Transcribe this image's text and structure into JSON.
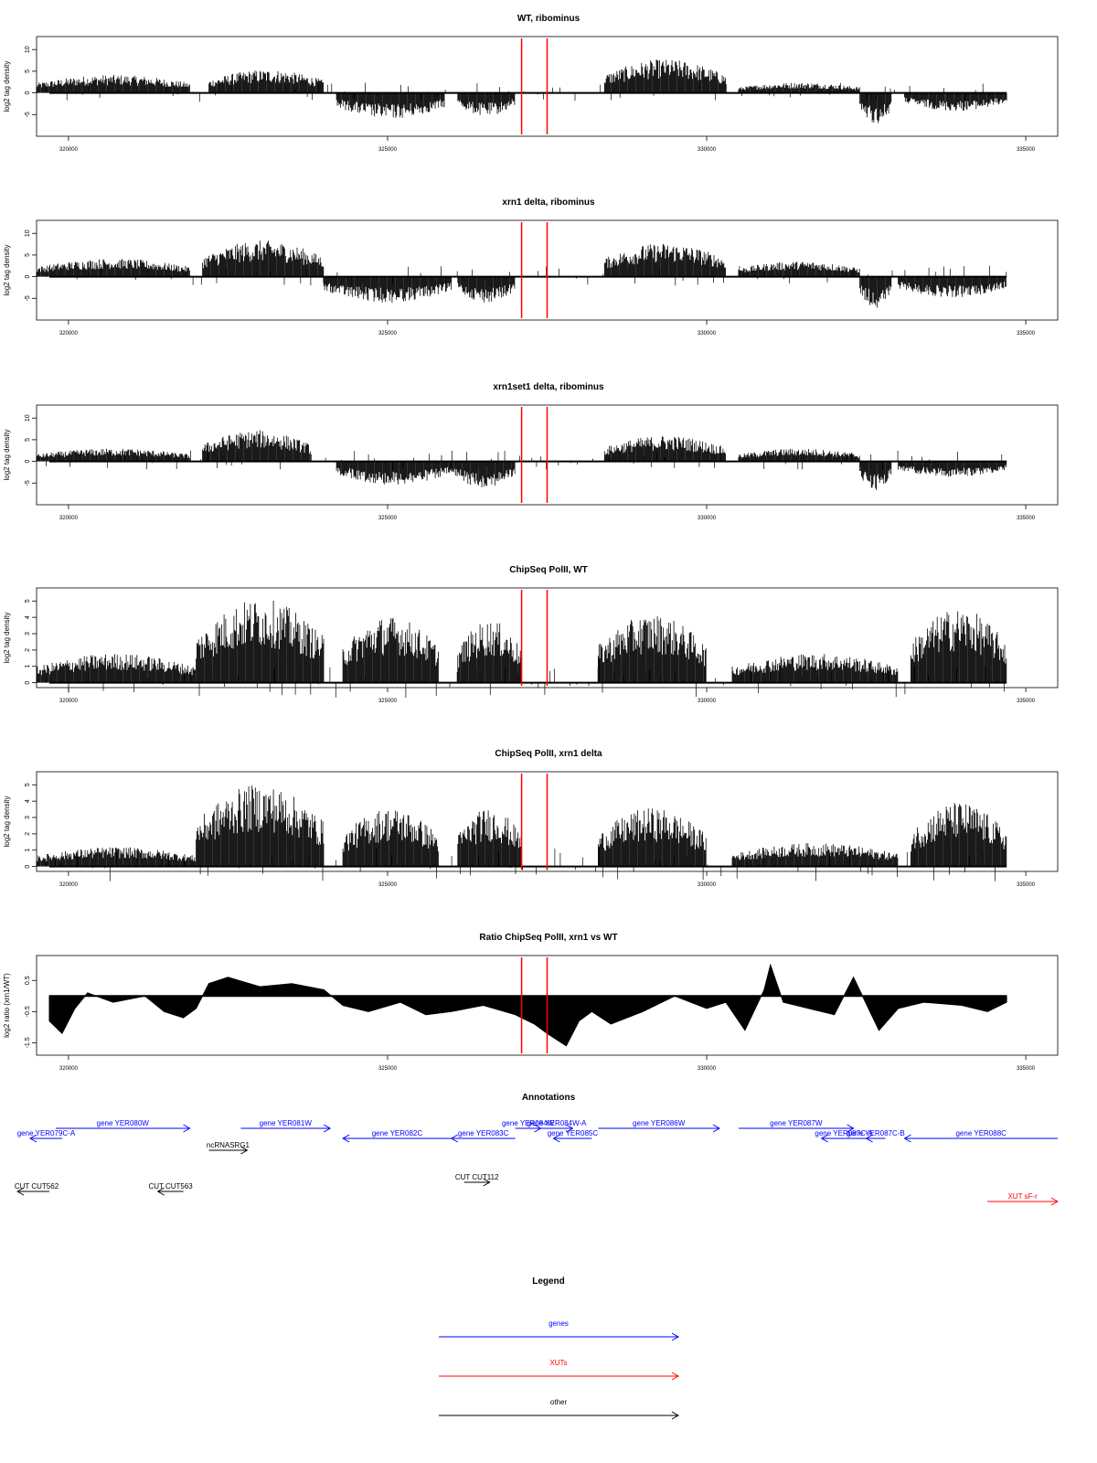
{
  "figure": {
    "x_range": [
      319500,
      335500
    ],
    "x_ticks": [
      320000,
      325000,
      330000,
      335000
    ],
    "x_tick_labels": [
      "320000",
      "325000",
      "330000",
      "335000"
    ],
    "red_marker_positions": [
      327100,
      327500
    ],
    "colors": {
      "genes": "#0000ff",
      "xuts": "#ff0000",
      "other": "#000000",
      "marker": "#ff0000",
      "signal": "#000000"
    }
  },
  "chart_data": [
    {
      "id": "wt-ribominus",
      "type": "bar",
      "title": "WT, ribominus",
      "xlabel": "",
      "ylabel": "log2 tag density",
      "ylim": [
        -10,
        13
      ],
      "y_ticks": [
        -5,
        0,
        5,
        10
      ],
      "y_tick_labels": [
        "-5",
        "0",
        "5",
        "10"
      ],
      "baseline": 0,
      "segments": [
        {
          "start": 319500,
          "end": 321900,
          "value": 3.5
        },
        {
          "start": 322200,
          "end": 324000,
          "value": 4.5
        },
        {
          "start": 324200,
          "end": 325900,
          "value": -5
        },
        {
          "start": 326100,
          "end": 327000,
          "value": -4.5
        },
        {
          "start": 328400,
          "end": 330300,
          "value": 6.5
        },
        {
          "start": 330500,
          "end": 332400,
          "value": 2
        },
        {
          "start": 332400,
          "end": 332900,
          "value": -6
        },
        {
          "start": 333100,
          "end": 334700,
          "value": -3.5
        }
      ]
    },
    {
      "id": "xrn1-ribominus",
      "type": "bar",
      "title": "xrn1 delta, ribominus",
      "xlabel": "",
      "ylabel": "log2 tag density",
      "ylim": [
        -10,
        13
      ],
      "y_ticks": [
        -5,
        0,
        5,
        10
      ],
      "y_tick_labels": [
        "-5",
        "0",
        "5",
        "10"
      ],
      "baseline": 0,
      "segments": [
        {
          "start": 319500,
          "end": 321900,
          "value": 3.5
        },
        {
          "start": 322100,
          "end": 324000,
          "value": 7
        },
        {
          "start": 324000,
          "end": 326000,
          "value": -5
        },
        {
          "start": 326100,
          "end": 327000,
          "value": -5
        },
        {
          "start": 328400,
          "end": 330300,
          "value": 6.5
        },
        {
          "start": 330500,
          "end": 332400,
          "value": 3
        },
        {
          "start": 332400,
          "end": 332900,
          "value": -6
        },
        {
          "start": 333000,
          "end": 334700,
          "value": -4
        }
      ]
    },
    {
      "id": "xrn1set1-ribominus",
      "type": "bar",
      "title": "xrn1set1 delta, ribominus",
      "xlabel": "",
      "ylabel": "log2 tag density",
      "ylim": [
        -10,
        13
      ],
      "y_ticks": [
        -5,
        0,
        5,
        10
      ],
      "y_tick_labels": [
        "-5",
        "0",
        "5",
        "10"
      ],
      "baseline": 0,
      "segments": [
        {
          "start": 319500,
          "end": 321900,
          "value": 2.5
        },
        {
          "start": 322100,
          "end": 323800,
          "value": 6
        },
        {
          "start": 324200,
          "end": 326000,
          "value": -4.5
        },
        {
          "start": 326000,
          "end": 327000,
          "value": -5
        },
        {
          "start": 328400,
          "end": 330300,
          "value": 5
        },
        {
          "start": 330500,
          "end": 332400,
          "value": 2.5
        },
        {
          "start": 332400,
          "end": 332900,
          "value": -5.5
        },
        {
          "start": 333000,
          "end": 334700,
          "value": -3
        }
      ]
    },
    {
      "id": "chipseq-wt",
      "type": "bar",
      "title": "ChipSeq PolII, WT",
      "xlabel": "",
      "ylabel": "log2 tag density",
      "ylim": [
        -0.3,
        5.8
      ],
      "y_ticks": [
        0,
        1,
        2,
        3,
        4,
        5
      ],
      "y_tick_labels": [
        "0",
        "1",
        "2",
        "3",
        "4",
        "5"
      ],
      "baseline": 0,
      "segments": [
        {
          "start": 319500,
          "end": 322000,
          "value": 1.5
        },
        {
          "start": 322000,
          "end": 324000,
          "value": 4.3
        },
        {
          "start": 324300,
          "end": 325800,
          "value": 3.4
        },
        {
          "start": 326100,
          "end": 327100,
          "value": 3.2
        },
        {
          "start": 328300,
          "end": 330000,
          "value": 3.5
        },
        {
          "start": 330400,
          "end": 333000,
          "value": 1.5
        },
        {
          "start": 333200,
          "end": 334700,
          "value": 3.8
        }
      ]
    },
    {
      "id": "chipseq-xrn1",
      "type": "bar",
      "title": "ChipSeq PolII, xrn1 delta",
      "xlabel": "",
      "ylabel": "log2 tag density",
      "ylim": [
        -0.3,
        5.8
      ],
      "y_ticks": [
        0,
        1,
        2,
        3,
        4,
        5
      ],
      "y_tick_labels": [
        "0",
        "1",
        "2",
        "3",
        "4",
        "5"
      ],
      "baseline": 0,
      "segments": [
        {
          "start": 319500,
          "end": 322000,
          "value": 1.0
        },
        {
          "start": 322000,
          "end": 324000,
          "value": 4.2
        },
        {
          "start": 324300,
          "end": 325800,
          "value": 3.0
        },
        {
          "start": 326100,
          "end": 327100,
          "value": 3.0
        },
        {
          "start": 328300,
          "end": 330000,
          "value": 3.0
        },
        {
          "start": 330400,
          "end": 333000,
          "value": 1.2
        },
        {
          "start": 333200,
          "end": 334700,
          "value": 3.3
        }
      ]
    },
    {
      "id": "ratio-chipseq",
      "type": "area",
      "title": "Ratio ChipSeq PolII, xrn1 vs WT",
      "xlabel": "",
      "ylabel": "log2 ratio (xrn1/WT)",
      "ylim": [
        -1.9,
        1.3
      ],
      "y_ticks": [
        -1.5,
        -0.5,
        0.5
      ],
      "y_tick_labels": [
        "-1.5",
        "-0.5",
        "0.5"
      ],
      "baseline": 0,
      "x": [
        319700,
        319900,
        320100,
        320300,
        320700,
        321200,
        321500,
        321800,
        322000,
        322200,
        322500,
        323000,
        323500,
        324000,
        324300,
        324700,
        325200,
        325600,
        326000,
        326500,
        327000,
        327300,
        327500,
        327800,
        328000,
        328200,
        328500,
        329000,
        329500,
        330000,
        330300,
        330600,
        330900,
        331000,
        331200,
        331600,
        332000,
        332300,
        332700,
        333000,
        333400,
        334000,
        334400,
        334700
      ],
      "y": [
        -0.8,
        -1.2,
        -0.4,
        0.1,
        -0.2,
        0.0,
        -0.5,
        -0.7,
        -0.4,
        0.4,
        0.6,
        0.3,
        0.4,
        0.2,
        -0.3,
        -0.5,
        -0.2,
        -0.6,
        -0.5,
        -0.3,
        -0.6,
        -0.9,
        -1.2,
        -1.6,
        -0.8,
        -0.5,
        -0.9,
        -0.5,
        0.0,
        -0.4,
        -0.2,
        -1.1,
        0.2,
        1.0,
        -0.2,
        -0.4,
        -0.6,
        0.6,
        -1.1,
        -0.4,
        -0.2,
        -0.3,
        -0.5,
        -0.2
      ]
    }
  ],
  "annotations": {
    "title": "Annotations",
    "features": [
      {
        "label": "gene YER079C-A",
        "type": "gene",
        "start": 319400,
        "end": 319900,
        "strand": "-",
        "row": 1
      },
      {
        "label": "gene YER080W",
        "type": "gene",
        "start": 319800,
        "end": 321900,
        "strand": "+",
        "row": 0
      },
      {
        "label": "gene YER081W",
        "type": "gene",
        "start": 322700,
        "end": 324100,
        "strand": "+",
        "row": 0
      },
      {
        "label": "ncRNASRG1",
        "type": "other",
        "start": 322200,
        "end": 322800,
        "strand": "+",
        "row": 2
      },
      {
        "label": "gene YER082C",
        "type": "gene",
        "start": 324300,
        "end": 326000,
        "strand": "-",
        "row": 1
      },
      {
        "label": "gene YER083C",
        "type": "gene",
        "start": 326000,
        "end": 327000,
        "strand": "-",
        "row": 1
      },
      {
        "label": "gene YER084W",
        "type": "gene",
        "start": 327000,
        "end": 327400,
        "strand": "+",
        "row": 0
      },
      {
        "label": "gene YER084W-A",
        "type": "gene",
        "start": 327400,
        "end": 327900,
        "strand": "+",
        "row": 0
      },
      {
        "label": "gene YER085C",
        "type": "gene",
        "start": 327600,
        "end": 328200,
        "strand": "-",
        "row": 1
      },
      {
        "label": "gene YER086W",
        "type": "gene",
        "start": 328300,
        "end": 330200,
        "strand": "+",
        "row": 0
      },
      {
        "label": "gene YER087W",
        "type": "gene",
        "start": 330500,
        "end": 332300,
        "strand": "+",
        "row": 0
      },
      {
        "label": "gene YER087C-A",
        "type": "gene",
        "start": 331800,
        "end": 332500,
        "strand": "-",
        "row": 1
      },
      {
        "label": "gene YER087C-B",
        "type": "gene",
        "start": 332500,
        "end": 332800,
        "strand": "-",
        "row": 1
      },
      {
        "label": "gene YER088C",
        "type": "gene",
        "start": 333100,
        "end": 335500,
        "strand": "-",
        "row": 1
      },
      {
        "label": "CUT CUT562",
        "type": "other",
        "start": 319200,
        "end": 319700,
        "strand": "-",
        "row": 3
      },
      {
        "label": "CUT CUT563",
        "type": "other",
        "start": 321400,
        "end": 321800,
        "strand": "-",
        "row": 3
      },
      {
        "label": "CUT CUT112",
        "type": "other",
        "start": 326200,
        "end": 326600,
        "strand": "+",
        "row": 4
      },
      {
        "label": "XUT sF-r",
        "type": "xut",
        "start": 334400,
        "end": 335500,
        "strand": "+",
        "row": 5
      }
    ]
  },
  "legend": {
    "title": "Legend",
    "items": [
      {
        "label": "genes",
        "type": "gene"
      },
      {
        "label": "XUTs",
        "type": "xut"
      },
      {
        "label": "other",
        "type": "other"
      }
    ]
  }
}
